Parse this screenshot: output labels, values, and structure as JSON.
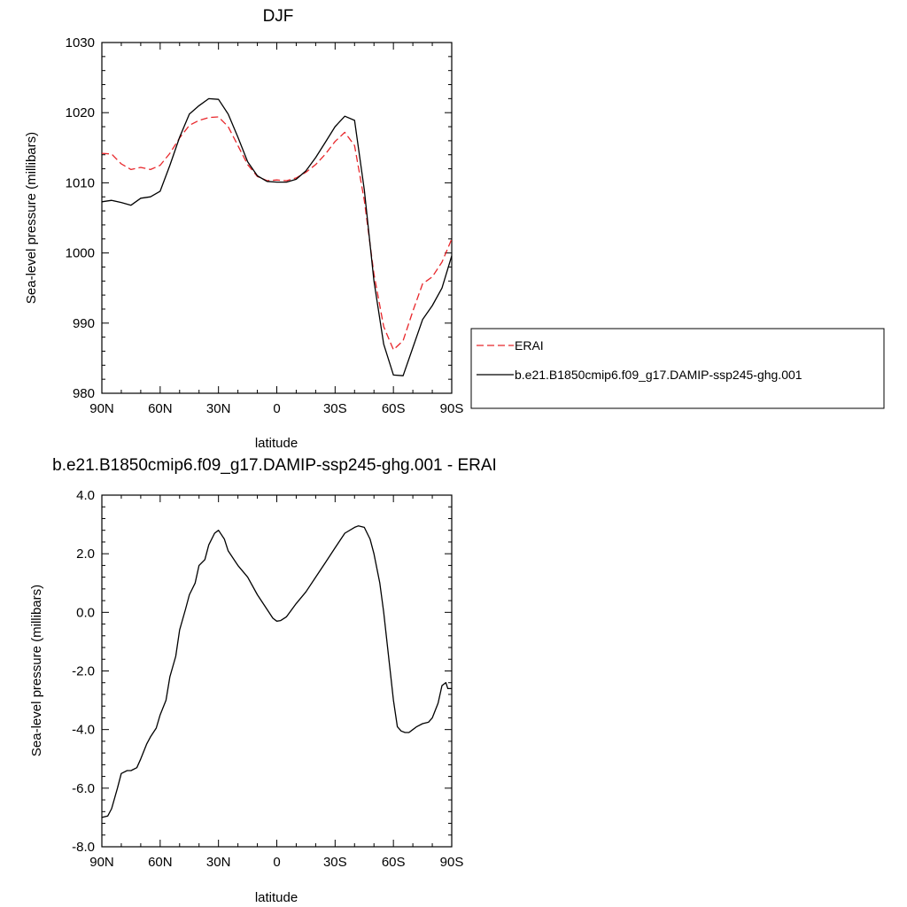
{
  "chart_data": [
    {
      "type": "line",
      "title": "DJF",
      "xlabel": "latitude",
      "ylabel": "Sea-level pressure (millibars)",
      "xlim": [
        90,
        -90
      ],
      "ylim": [
        980,
        1030
      ],
      "xticks": [
        90,
        60,
        30,
        0,
        -30,
        -60,
        -90
      ],
      "xtick_labels": [
        "90N",
        "60N",
        "30N",
        "0",
        "30S",
        "60S",
        "90S"
      ],
      "yticks": [
        980,
        990,
        1000,
        1010,
        1020,
        1030
      ],
      "ytick_labels": [
        "980",
        "990",
        "1000",
        "1010",
        "1020",
        "1030"
      ],
      "legend": {
        "position": "right"
      },
      "series": [
        {
          "name": "ERAI",
          "color": "#e8262a",
          "dash": "dashed",
          "x": [
            90,
            85,
            80,
            75,
            70,
            65,
            60,
            55,
            50,
            45,
            40,
            35,
            30,
            25,
            20,
            15,
            10,
            5,
            0,
            -5,
            -10,
            -15,
            -20,
            -25,
            -30,
            -35,
            -40,
            -45,
            -50,
            -55,
            -60,
            -65,
            -70,
            -75,
            -80,
            -85,
            -90
          ],
          "y": [
            1014.2,
            1014.1,
            1012.7,
            1011.9,
            1012.2,
            1011.9,
            1012.5,
            1014.2,
            1016.4,
            1018.2,
            1018.9,
            1019.3,
            1019.4,
            1018.0,
            1015.3,
            1012.6,
            1010.9,
            1010.3,
            1010.4,
            1010.3,
            1010.7,
            1011.5,
            1012.6,
            1014.1,
            1015.9,
            1017.2,
            1015.3,
            1007.5,
            997.0,
            989.5,
            986.2,
            987.5,
            991.7,
            995.6,
            996.6,
            998.7,
            1002.0
          ]
        },
        {
          "name": "b.e21.B1850cmip6.f09_g17.DAMIP-ssp245-ghg.001",
          "color": "#000000",
          "dash": "solid",
          "x": [
            90,
            85,
            80,
            75,
            70,
            65,
            60,
            55,
            50,
            45,
            40,
            35,
            30,
            25,
            20,
            15,
            10,
            5,
            0,
            -5,
            -10,
            -15,
            -20,
            -25,
            -30,
            -35,
            -40,
            -45,
            -50,
            -55,
            -60,
            -65,
            -70,
            -75,
            -80,
            -85,
            -90
          ],
          "y": [
            1007.3,
            1007.5,
            1007.2,
            1006.8,
            1007.8,
            1008.0,
            1008.8,
            1012.5,
            1016.5,
            1019.8,
            1021.0,
            1022.0,
            1021.9,
            1019.8,
            1016.5,
            1013.0,
            1011.0,
            1010.2,
            1010.1,
            1010.1,
            1010.5,
            1011.7,
            1013.6,
            1015.8,
            1018.0,
            1019.5,
            1018.9,
            1009.0,
            996.0,
            987.0,
            982.6,
            982.5,
            986.5,
            990.5,
            992.5,
            995.0,
            999.6
          ]
        }
      ]
    },
    {
      "type": "line",
      "title": "b.e21.B1850cmip6.f09_g17.DAMIP-ssp245-ghg.001 - ERAI",
      "xlabel": "latitude",
      "ylabel": "Sea-level pressure (millibars)",
      "xlim": [
        90,
        -90
      ],
      "ylim": [
        -8,
        4
      ],
      "xticks": [
        90,
        60,
        30,
        0,
        -30,
        -60,
        -90
      ],
      "xtick_labels": [
        "90N",
        "60N",
        "30N",
        "0",
        "30S",
        "60S",
        "90S"
      ],
      "yticks": [
        -8,
        -6,
        -4,
        -2,
        0,
        2,
        4
      ],
      "ytick_labels": [
        "-8.0",
        "-6.0",
        "-4.0",
        "-2.0",
        "0.0",
        "2.0",
        "4.0"
      ],
      "series": [
        {
          "color": "#000000",
          "dash": "solid",
          "x": [
            90,
            87,
            85,
            82,
            80,
            77,
            75,
            72,
            70,
            67,
            65,
            62,
            60,
            57,
            55,
            52,
            50,
            47,
            45,
            42,
            40,
            37,
            35,
            32,
            30,
            27,
            25,
            20,
            15,
            10,
            5,
            2,
            0,
            -2,
            -5,
            -10,
            -15,
            -20,
            -25,
            -30,
            -35,
            -40,
            -42,
            -45,
            -48,
            -50,
            -53,
            -55,
            -58,
            -60,
            -62,
            -64,
            -66,
            -68,
            -70,
            -72,
            -75,
            -78,
            -80,
            -83,
            -85,
            -87,
            -88,
            -90
          ],
          "y": [
            -7.0,
            -6.95,
            -6.7,
            -6.0,
            -5.5,
            -5.4,
            -5.4,
            -5.3,
            -5.0,
            -4.5,
            -4.25,
            -3.95,
            -3.5,
            -3.0,
            -2.2,
            -1.5,
            -0.6,
            0.1,
            0.6,
            1.0,
            1.6,
            1.8,
            2.3,
            2.7,
            2.8,
            2.5,
            2.1,
            1.6,
            1.2,
            0.6,
            0.1,
            -0.2,
            -0.3,
            -0.28,
            -0.15,
            0.3,
            0.7,
            1.2,
            1.7,
            2.2,
            2.7,
            2.9,
            2.95,
            2.9,
            2.5,
            2.0,
            1.0,
            0.0,
            -1.8,
            -3.0,
            -3.9,
            -4.05,
            -4.1,
            -4.1,
            -4.0,
            -3.9,
            -3.8,
            -3.75,
            -3.6,
            -3.1,
            -2.5,
            -2.4,
            -2.6,
            -2.6
          ]
        }
      ]
    }
  ]
}
